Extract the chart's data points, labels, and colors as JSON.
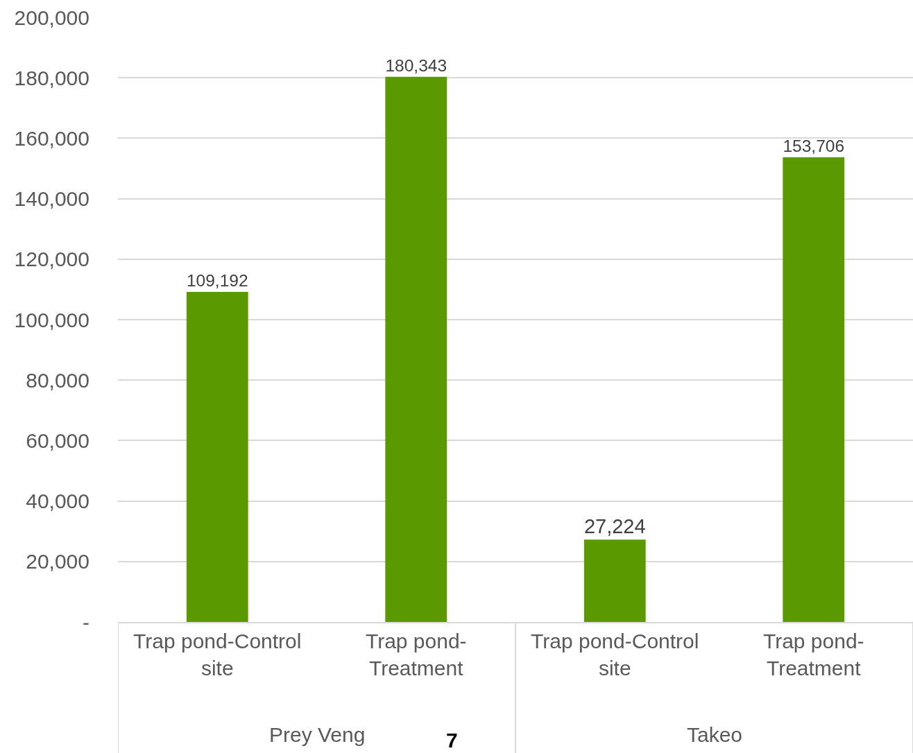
{
  "chart_data": {
    "type": "bar",
    "categories": [
      "Trap pond-Control site",
      "Trap pond-Treatment",
      "Trap pond-Control site",
      "Trap pond-Treatment"
    ],
    "values": [
      109192,
      180343,
      27224,
      153706
    ],
    "value_labels": [
      "109,192",
      "180,343",
      "27,224",
      "153,706"
    ],
    "color": "#5a9a00",
    "ylim": [
      0,
      200000
    ],
    "yticks": [
      {
        "value": 0,
        "label": "-"
      },
      {
        "value": 20000,
        "label": "20,000"
      },
      {
        "value": 40000,
        "label": "40,000"
      },
      {
        "value": 60000,
        "label": "60,000"
      },
      {
        "value": 80000,
        "label": "80,000"
      },
      {
        "value": 100000,
        "label": "100,000"
      },
      {
        "value": 120000,
        "label": "120,000"
      },
      {
        "value": 140000,
        "label": "140,000"
      },
      {
        "value": 160000,
        "label": "160,000"
      },
      {
        "value": 180000,
        "label": "180,000"
      },
      {
        "value": 200000,
        "label": "200,000"
      }
    ],
    "grid": "y",
    "legend": false,
    "annotations": [
      "Prey Veng",
      "Takeo",
      "7"
    ]
  }
}
